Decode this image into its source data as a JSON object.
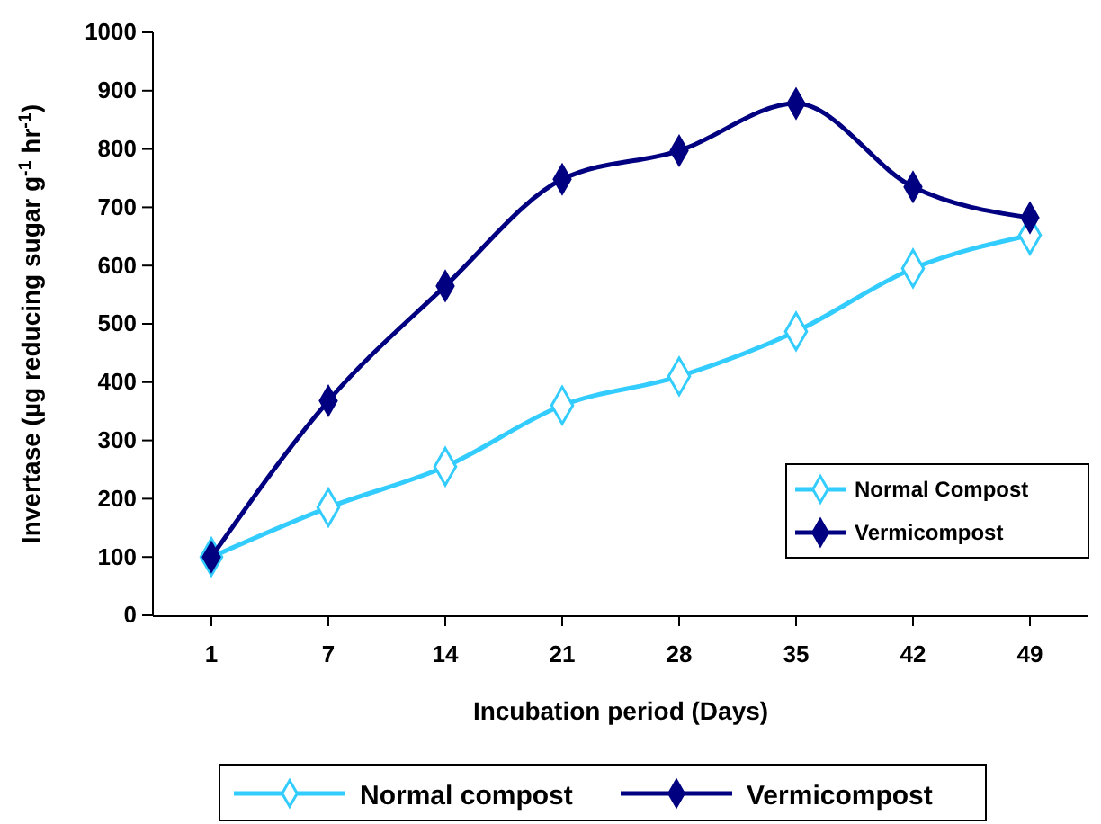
{
  "chart_data": {
    "type": "line",
    "xlabel": "Incubation period (Days)",
    "ylabel": "Invertase (µg reducing sugar g$^{-1}$ hr$^{-1}$)",
    "categories": [
      "1",
      "7",
      "14",
      "21",
      "28",
      "35",
      "42",
      "49"
    ],
    "series": [
      {
        "name": "Normal Compost",
        "color": "#33ccff",
        "values": [
          100,
          185,
          255,
          360,
          410,
          487,
          595,
          652
        ]
      },
      {
        "name": "Vermicompost",
        "color": "#000080",
        "values": [
          100,
          368,
          565,
          748,
          797,
          878,
          735,
          682
        ]
      }
    ],
    "ylim": [
      0,
      1000
    ],
    "yticks": [
      0,
      100,
      200,
      300,
      400,
      500,
      600,
      700,
      800,
      900,
      1000
    ],
    "grid": false,
    "legend": "right",
    "marker": "diamond",
    "line_style": "solid",
    "annotations": [
      "Normal compost",
      "Vermicompost"
    ]
  }
}
